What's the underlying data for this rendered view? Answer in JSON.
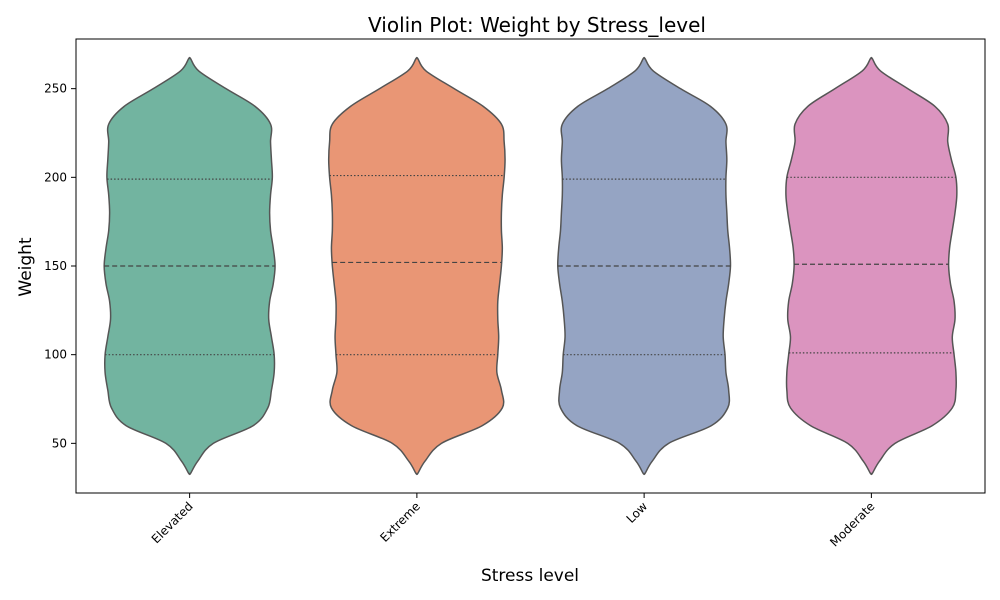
{
  "chart_data": {
    "type": "violin",
    "title": "Violin Plot: Weight by Stress_level",
    "xlabel": "Stress level",
    "ylabel": "Weight",
    "ylim": [
      22,
      278
    ],
    "yticks": [
      50,
      100,
      150,
      200,
      250
    ],
    "categories": [
      "Elevated",
      "Extreme",
      "Low",
      "Moderate"
    ],
    "colors": [
      "#72b4a0",
      "#e99675",
      "#95a4c3",
      "#db94bf"
    ],
    "outline_color": "#555555",
    "grid": false,
    "violins": [
      {
        "category": "Elevated",
        "range": [
          33,
          267
        ],
        "quartiles": {
          "q1": 100,
          "median": 150,
          "q3": 199
        },
        "profile_levels": [
          33,
          40,
          50,
          60,
          70,
          80,
          90,
          100,
          110,
          120,
          130,
          140,
          150,
          160,
          170,
          180,
          190,
          200,
          210,
          220,
          230,
          240,
          250,
          260,
          267
        ],
        "profile_widths": [
          0.01,
          0.09,
          0.26,
          0.7,
          0.86,
          0.9,
          0.93,
          0.93,
          0.9,
          0.87,
          0.88,
          0.92,
          0.94,
          0.92,
          0.89,
          0.88,
          0.89,
          0.91,
          0.9,
          0.89,
          0.89,
          0.72,
          0.4,
          0.1,
          0.01
        ]
      },
      {
        "category": "Extreme",
        "range": [
          33,
          267
        ],
        "quartiles": {
          "q1": 100,
          "median": 152,
          "q3": 201
        },
        "profile_levels": [
          33,
          40,
          50,
          60,
          70,
          80,
          90,
          100,
          110,
          120,
          130,
          140,
          150,
          160,
          170,
          180,
          190,
          200,
          210,
          220,
          230,
          240,
          250,
          260,
          267
        ],
        "profile_widths": [
          0.01,
          0.09,
          0.27,
          0.72,
          0.94,
          0.93,
          0.88,
          0.89,
          0.9,
          0.89,
          0.89,
          0.91,
          0.93,
          0.94,
          0.93,
          0.93,
          0.94,
          0.96,
          0.97,
          0.96,
          0.93,
          0.73,
          0.41,
          0.1,
          0.01
        ]
      },
      {
        "category": "Low",
        "range": [
          33,
          267
        ],
        "quartiles": {
          "q1": 100,
          "median": 150,
          "q3": 199
        },
        "profile_levels": [
          33,
          40,
          50,
          60,
          70,
          80,
          90,
          100,
          110,
          120,
          130,
          140,
          150,
          160,
          170,
          180,
          190,
          200,
          210,
          220,
          230,
          240,
          250,
          260,
          267
        ],
        "profile_widths": [
          0.01,
          0.09,
          0.27,
          0.74,
          0.92,
          0.93,
          0.9,
          0.89,
          0.87,
          0.88,
          0.9,
          0.93,
          0.95,
          0.94,
          0.92,
          0.91,
          0.9,
          0.9,
          0.91,
          0.9,
          0.9,
          0.73,
          0.4,
          0.1,
          0.01
        ]
      },
      {
        "category": "Moderate",
        "range": [
          33,
          267
        ],
        "quartiles": {
          "q1": 101,
          "median": 151,
          "q3": 200
        },
        "profile_levels": [
          33,
          40,
          50,
          60,
          70,
          80,
          90,
          100,
          110,
          120,
          130,
          140,
          150,
          160,
          170,
          180,
          190,
          200,
          210,
          220,
          230,
          240,
          250,
          260,
          267
        ],
        "profile_widths": [
          0.01,
          0.09,
          0.26,
          0.67,
          0.89,
          0.93,
          0.93,
          0.91,
          0.89,
          0.92,
          0.91,
          0.87,
          0.85,
          0.86,
          0.89,
          0.92,
          0.94,
          0.93,
          0.88,
          0.84,
          0.84,
          0.7,
          0.4,
          0.1,
          0.01
        ]
      }
    ]
  }
}
